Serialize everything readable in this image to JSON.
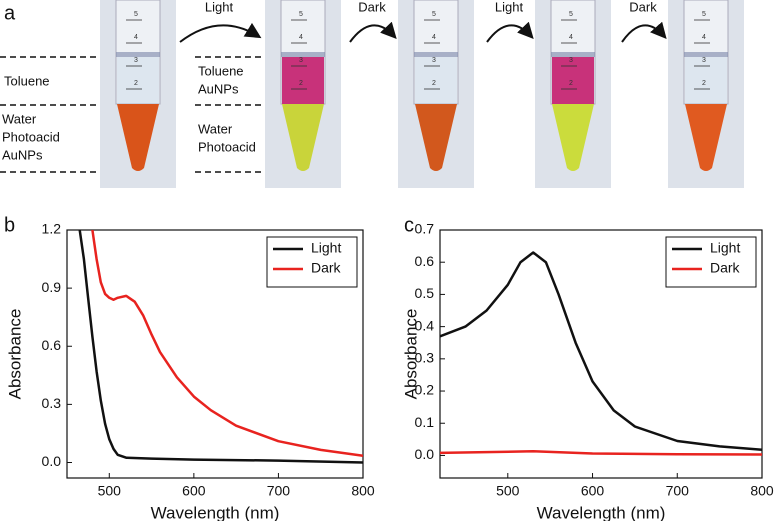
{
  "panel_labels": [
    "a",
    "b",
    "c"
  ],
  "photo_panel": {
    "steps": [
      "Light",
      "Dark",
      "Light",
      "Dark"
    ],
    "tube_scale": [
      "5",
      "4",
      "3",
      "2"
    ],
    "before": {
      "top_layer": [
        "Toluene"
      ],
      "bottom_layer": [
        "Water",
        "Photoacid",
        "AuNPs"
      ]
    },
    "after": {
      "top_layer": [
        "Toluene",
        "AuNPs"
      ],
      "bottom_layer": [
        "Water",
        "Photoacid"
      ]
    }
  },
  "chart_data": [
    {
      "type": "line",
      "xlabel": "Wavelength (nm)",
      "ylabel": "Absorbance",
      "xlim": [
        450,
        800
      ],
      "xticks": [
        500,
        600,
        700,
        800
      ],
      "ylim": [
        -0.08,
        1.2
      ],
      "yticks": [
        {
          "value": 0,
          "label": "0.0"
        },
        0.3,
        0.6,
        0.9,
        1.2
      ],
      "legend": "upper right",
      "series": [
        {
          "name": "Light",
          "color": "#111111",
          "x": [
            465,
            470,
            475,
            480,
            485,
            490,
            495,
            500,
            505,
            510,
            520,
            550,
            600,
            700,
            800
          ],
          "values": [
            1.2,
            1.05,
            0.85,
            0.65,
            0.47,
            0.32,
            0.2,
            0.12,
            0.07,
            0.04,
            0.025,
            0.02,
            0.015,
            0.01,
            0.0
          ]
        },
        {
          "name": "Dark",
          "color": "#e8231f",
          "x": [
            480,
            485,
            490,
            495,
            500,
            505,
            510,
            520,
            530,
            540,
            550,
            560,
            580,
            600,
            620,
            650,
            700,
            750,
            800
          ],
          "values": [
            1.2,
            1.05,
            0.93,
            0.87,
            0.85,
            0.84,
            0.85,
            0.86,
            0.83,
            0.76,
            0.66,
            0.57,
            0.44,
            0.34,
            0.27,
            0.19,
            0.11,
            0.065,
            0.035
          ]
        }
      ]
    },
    {
      "type": "line",
      "xlabel": "Wavelength (nm)",
      "ylabel": "Absorbance",
      "xlim": [
        420,
        800
      ],
      "xticks": [
        500,
        600,
        700,
        800
      ],
      "ylim": [
        -0.07,
        0.7
      ],
      "yticks": [
        {
          "value": 0,
          "label": "0.0"
        },
        0.1,
        0.2,
        0.3,
        0.4,
        0.5,
        0.6,
        0.7
      ],
      "legend": "upper right",
      "series": [
        {
          "name": "Light",
          "color": "#111111",
          "x": [
            420,
            450,
            475,
            500,
            515,
            530,
            545,
            560,
            580,
            600,
            625,
            650,
            700,
            750,
            800
          ],
          "values": [
            0.37,
            0.4,
            0.45,
            0.53,
            0.6,
            0.63,
            0.6,
            0.5,
            0.35,
            0.23,
            0.14,
            0.09,
            0.045,
            0.028,
            0.018
          ]
        },
        {
          "name": "Dark",
          "color": "#e8231f",
          "x": [
            420,
            530,
            600,
            700,
            800
          ],
          "values": [
            0.008,
            0.013,
            0.006,
            0.004,
            0.003
          ]
        }
      ]
    }
  ]
}
